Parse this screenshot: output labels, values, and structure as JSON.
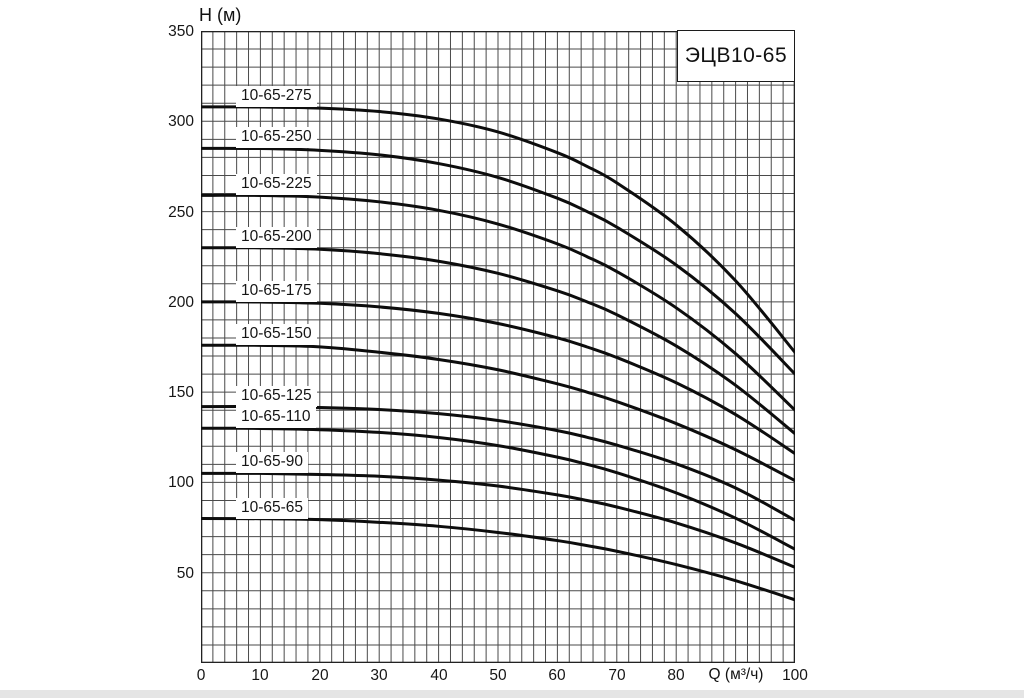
{
  "header": {
    "model_label": "ЭЦВ10-65"
  },
  "axes": {
    "y_title": "H (м)",
    "x_title": "Q (м³/ч)",
    "y_ticks": [
      "350",
      "300",
      "250",
      "200",
      "150",
      "100",
      "50"
    ],
    "y_tick_values": [
      350,
      300,
      250,
      200,
      150,
      100,
      50
    ],
    "x_ticks": [
      "0",
      "10",
      "20",
      "30",
      "40",
      "50",
      "60",
      "70",
      "80"
    ],
    "x_tick_values": [
      0,
      10,
      20,
      30,
      40,
      50,
      60,
      70,
      80
    ],
    "x_last_tick": "100",
    "x_last_tick_value": 100
  },
  "chart_data": {
    "type": "line",
    "title": "ЭЦВ10-65",
    "xlabel": "Q (м³/ч)",
    "ylabel": "H (м)",
    "xlim": [
      0,
      100
    ],
    "ylim": [
      0,
      350
    ],
    "grid": {
      "on": true,
      "x_step": 2,
      "y_step": 10
    },
    "legend_position": "labels-on-curves",
    "x": [
      0,
      10,
      20,
      30,
      40,
      50,
      60,
      65,
      70,
      80,
      90,
      100
    ],
    "series": [
      {
        "name": "10-65-275",
        "values": [
          308,
          307.9,
          307.3,
          305.4,
          301.3,
          294.1,
          282.6,
          275,
          265.9,
          242.6,
          211.7,
          172
        ]
      },
      {
        "name": "10-65-250",
        "values": [
          285,
          284.9,
          283.9,
          281.4,
          276.6,
          268.9,
          257.4,
          250,
          241.4,
          220.4,
          193.5,
          160
        ]
      },
      {
        "name": "10-65-225",
        "values": [
          259,
          258.9,
          258.0,
          255.4,
          250.7,
          243.1,
          232.1,
          225,
          216.8,
          196.7,
          171.3,
          140
        ]
      },
      {
        "name": "10-65-200",
        "values": [
          230,
          229.9,
          229.1,
          226.7,
          222.5,
          215.8,
          206.1,
          200,
          192.9,
          175.6,
          153.8,
          127
        ]
      },
      {
        "name": "10-65-175",
        "values": [
          200,
          199.9,
          199.2,
          197.2,
          193.6,
          188.0,
          180.1,
          175,
          169.2,
          155.2,
          137.6,
          116
        ]
      },
      {
        "name": "10-65-150",
        "values": [
          176,
          175.9,
          175.1,
          172.1,
          168.1,
          162.4,
          154.6,
          150,
          144.8,
          132.6,
          118.1,
          101
        ]
      },
      {
        "name": "10-65-125",
        "values": [
          142,
          142.0,
          141.5,
          140.4,
          138.1,
          134.3,
          128.7,
          125,
          120.7,
          110.3,
          96.9,
          79
        ]
      },
      {
        "name": "10-65-110",
        "values": [
          130,
          129.9,
          129.2,
          127.7,
          124.9,
          120.4,
          114.0,
          110,
          105.4,
          94.2,
          80.2,
          63
        ]
      },
      {
        "name": "10-65-90",
        "values": [
          105,
          105.0,
          104.4,
          103.4,
          101.3,
          98.0,
          93.1,
          90,
          86.4,
          77.6,
          66.5,
          53
        ]
      },
      {
        "name": "10-65-65",
        "values": [
          80,
          79.9,
          79.4,
          77.9,
          75.7,
          72.3,
          67.8,
          65,
          61.9,
          54.5,
          45.6,
          35
        ]
      }
    ],
    "colors": {
      "curve": "#0d0d0d",
      "grid": "#4a4a4a",
      "frame": "#222222",
      "background": "#ffffff"
    }
  }
}
